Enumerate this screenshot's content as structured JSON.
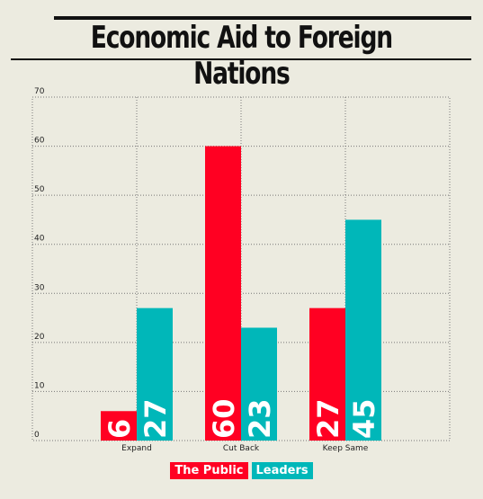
{
  "colors": {
    "public": "#ff0022",
    "leaders": "#00b7b9",
    "background": "#ecebe0"
  },
  "chart_data": {
    "type": "bar",
    "title": "Economic Aid to Foreign Nations",
    "categories": [
      "Expand",
      "Cut Back",
      "Keep Same"
    ],
    "series": [
      {
        "name": "The Public",
        "values": [
          6,
          60,
          27
        ]
      },
      {
        "name": "Leaders",
        "values": [
          27,
          23,
          45
        ]
      }
    ],
    "ylim": [
      0,
      70
    ],
    "yticks": [
      0,
      10,
      20,
      30,
      40,
      50,
      60,
      70
    ],
    "grid": true,
    "legend": "bottom"
  }
}
